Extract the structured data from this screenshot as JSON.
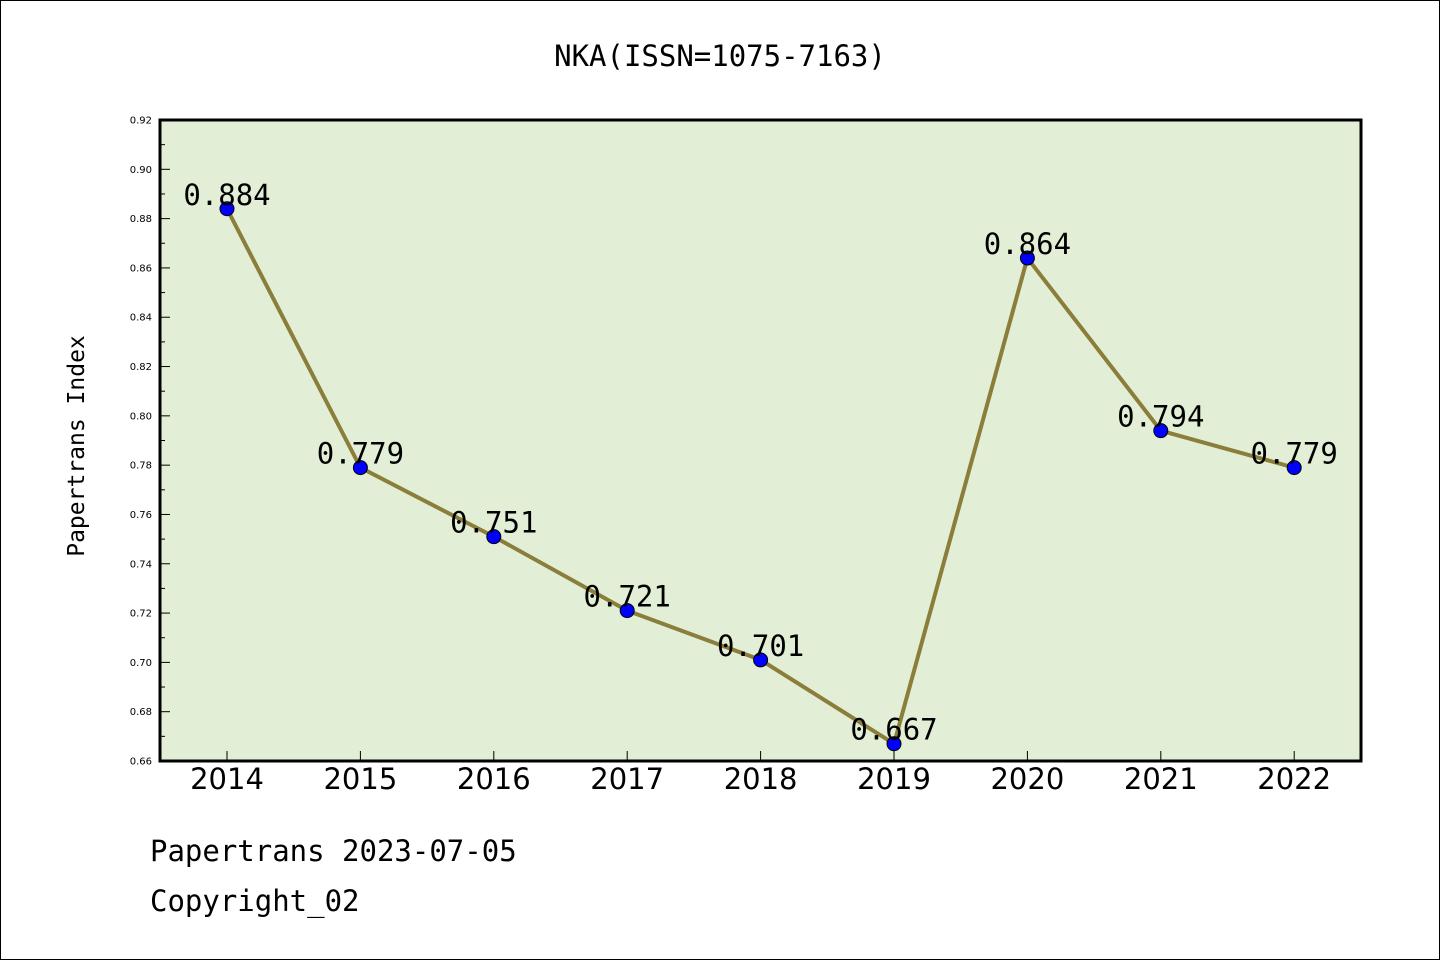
{
  "chart_data": {
    "type": "line",
    "title": "NKA(ISSN=1075-7163)",
    "ylabel": "Papertrans Index",
    "xlabel": "",
    "categories": [
      "2014",
      "2015",
      "2016",
      "2017",
      "2018",
      "2019",
      "2020",
      "2021",
      "2022"
    ],
    "values": [
      0.884,
      0.779,
      0.751,
      0.721,
      0.701,
      0.667,
      0.864,
      0.794,
      0.779
    ],
    "data_labels": [
      "0.884",
      "0.779",
      "0.751",
      "0.721",
      "0.701",
      "0.667",
      "0.864",
      "0.794",
      "0.779"
    ],
    "ylim": [
      0.66,
      0.92
    ],
    "yticks": [
      "0.66",
      "0.68",
      "0.70",
      "0.72",
      "0.74",
      "0.76",
      "0.78",
      "0.80",
      "0.82",
      "0.84",
      "0.86",
      "0.88",
      "0.90",
      "0.92"
    ],
    "grid": false,
    "colors": {
      "plot_background": "#e2efd6",
      "line": "#8b7d3a",
      "marker": "#0000ff"
    }
  },
  "footer": {
    "line1": "Papertrans 2023-07-05",
    "line2": "Copyright_02"
  }
}
